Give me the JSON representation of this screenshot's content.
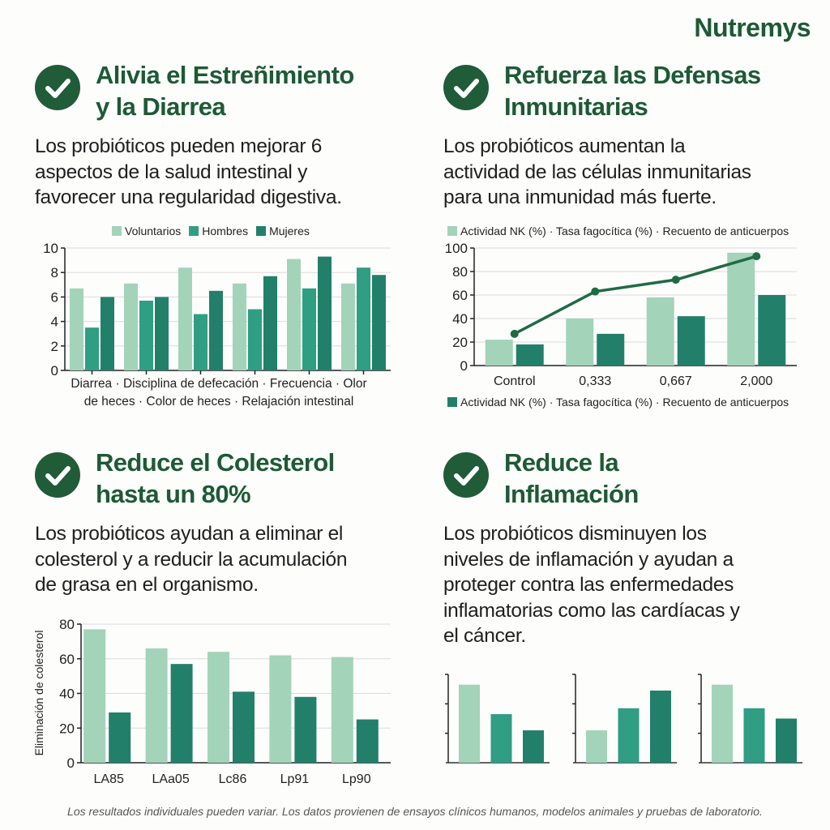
{
  "brand": {
    "logo": "Nutremys"
  },
  "colors": {
    "title": "#1d5a35",
    "check": "#1f5c37",
    "light": "#a3d3b9",
    "medium": "#2f9e82",
    "dark": "#22806a",
    "line": "#1f6b44"
  },
  "sections": [
    {
      "icon": "check-circle-icon",
      "title_lines": [
        "Alivia el Estreñimiento",
        "y la Diarrea"
      ],
      "text_lines": [
        "Los probióticos pueden mejorar 6",
        "aspectos de la salud intestinal y",
        "favorecer una regularidad digestiva."
      ]
    },
    {
      "icon": "check-circle-icon",
      "title_lines": [
        "Refuerza las Defensas",
        "Inmunitarias"
      ],
      "text_lines": [
        "Los probióticos aumentan la",
        "actividad de las células inmunitarias",
        "para una inmunidad más fuerte."
      ]
    },
    {
      "icon": "check-circle-icon",
      "title_lines": [
        "Reduce el Colesterol",
        "hasta un 80%"
      ],
      "text_lines": [
        "Los probióticos ayudan a eliminar el",
        "colesterol y a reducir la acumulación",
        "de grasa en el organismo."
      ]
    },
    {
      "icon": "check-circle-icon",
      "title_lines": [
        "Reduce la",
        "Inflamación"
      ],
      "text_lines": [
        "Los probióticos disminuyen los",
        "niveles de inflamación y ayudan a",
        "proteger contra las enfermedades",
        "inflamatorias como las cardíacas y",
        "el cáncer."
      ]
    }
  ],
  "chart_data": [
    {
      "type": "bar",
      "title": "",
      "ylabel": "",
      "ylim": [
        0,
        10
      ],
      "yticks": [
        0,
        2,
        4,
        6,
        8,
        10
      ],
      "grid": true,
      "legend_position": "top",
      "xlabel_lines": [
        "Diarrea · Disciplina de defecación · Frecuencia · Olor",
        "de heces · Color de heces · Relajación intestinal"
      ],
      "categories": [
        "Diarrea",
        "Disciplina de defecación",
        "Frecuencia",
        "Olor de heces",
        "Color de heces",
        "Relajación intestinal"
      ],
      "series": [
        {
          "name": "Voluntarios",
          "values": [
            6.7,
            7.1,
            8.4,
            7.1,
            9.1,
            7.1
          ]
        },
        {
          "name": "Hombres",
          "values": [
            3.5,
            5.7,
            4.6,
            5.0,
            6.7,
            8.4
          ]
        },
        {
          "name": "Mujeres",
          "values": [
            6.0,
            6.0,
            6.5,
            7.7,
            9.3,
            7.8
          ]
        }
      ]
    },
    {
      "type": "bar+line",
      "title": "",
      "ylim": [
        0,
        100
      ],
      "yticks": [
        0,
        20,
        40,
        60,
        80,
        100
      ],
      "grid": true,
      "legend_top": "Actividad NK (%) · Tasa fagocítica (%) · Recuento de anticuerpos",
      "legend_bottom": "Actividad NK (%) · Tasa fagocítica (%) · Recuento de anticuerpos",
      "categories": [
        "Control",
        "0,333",
        "0,667",
        "2,000"
      ],
      "series": [
        {
          "type": "bar",
          "values": [
            22,
            40,
            58,
            96
          ]
        },
        {
          "type": "bar",
          "values": [
            18,
            27,
            42,
            60
          ]
        },
        {
          "type": "line",
          "values": [
            27,
            63,
            73,
            93
          ]
        }
      ]
    },
    {
      "type": "bar",
      "title": "",
      "ylabel": "Eliminación de colesterol",
      "ylim": [
        0,
        80
      ],
      "yticks": [
        0,
        20,
        40,
        60,
        80
      ],
      "grid": true,
      "categories": [
        "LA85",
        "LAa05",
        "Lc86",
        "Lp91",
        "Lp90"
      ],
      "series": [
        {
          "values": [
            77,
            66,
            64,
            62,
            61
          ]
        },
        {
          "values": [
            29,
            57,
            41,
            38,
            25
          ]
        }
      ]
    },
    {
      "type": "bar",
      "title": "",
      "ylim": [
        0,
        3
      ],
      "panels": [
        {
          "values": [
            2.65,
            1.65,
            1.1
          ]
        },
        {
          "values": [
            1.1,
            1.85,
            2.45
          ]
        },
        {
          "values": [
            2.65,
            1.85,
            1.5
          ]
        }
      ]
    }
  ],
  "footer": "Los resultados individuales pueden variar. Los datos provienen de ensayos clínicos humanos, modelos animales y pruebas de laboratorio."
}
